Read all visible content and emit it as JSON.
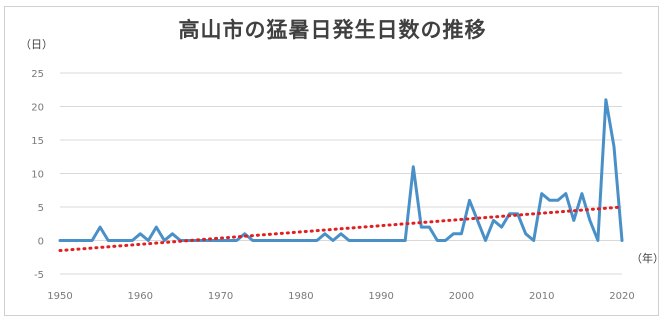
{
  "chart_data": {
    "type": "line",
    "title": "高山市の猛暑日発生日数の推移",
    "ylabel": "（日）",
    "xlabel": "（年）",
    "ylim": [
      -5,
      25
    ],
    "xlim": [
      1950,
      2020
    ],
    "yticks": [
      -5,
      0,
      5,
      10,
      15,
      20,
      25
    ],
    "xticks": [
      1950,
      1960,
      1970,
      1980,
      1990,
      2000,
      2010,
      2020
    ],
    "grid": true,
    "series": [
      {
        "color": "#4a90c8",
        "x": [
          1950,
          1951,
          1952,
          1953,
          1954,
          1955,
          1956,
          1957,
          1958,
          1959,
          1960,
          1961,
          1962,
          1963,
          1964,
          1965,
          1966,
          1967,
          1968,
          1969,
          1970,
          1971,
          1972,
          1973,
          1974,
          1975,
          1976,
          1977,
          1978,
          1979,
          1980,
          1981,
          1982,
          1983,
          1984,
          1985,
          1986,
          1987,
          1988,
          1989,
          1990,
          1991,
          1992,
          1993,
          1994,
          1995,
          1996,
          1997,
          1998,
          1999,
          2000,
          2001,
          2002,
          2003,
          2004,
          2005,
          2006,
          2007,
          2008,
          2009,
          2010,
          2011,
          2012,
          2013,
          2014,
          2015,
          2016,
          2017,
          2018,
          2019,
          2020
        ],
        "values": [
          0,
          0,
          0,
          0,
          0,
          2,
          0,
          0,
          0,
          0,
          1,
          0,
          2,
          0,
          1,
          0,
          0,
          0,
          0,
          0,
          0,
          0,
          0,
          1,
          0,
          0,
          0,
          0,
          0,
          0,
          0,
          0,
          0,
          1,
          0,
          1,
          0,
          0,
          0,
          0,
          0,
          0,
          0,
          0,
          11,
          2,
          2,
          0,
          0,
          1,
          1,
          6,
          3,
          0,
          3,
          2,
          4,
          4,
          1,
          0,
          7,
          6,
          6,
          7,
          3,
          7,
          3,
          0,
          21,
          14,
          0
        ]
      }
    ],
    "trendline": {
      "color": "#e02020",
      "style": "dotted",
      "x": [
        1950,
        2020
      ],
      "values": [
        -1.5,
        5.0
      ]
    }
  }
}
